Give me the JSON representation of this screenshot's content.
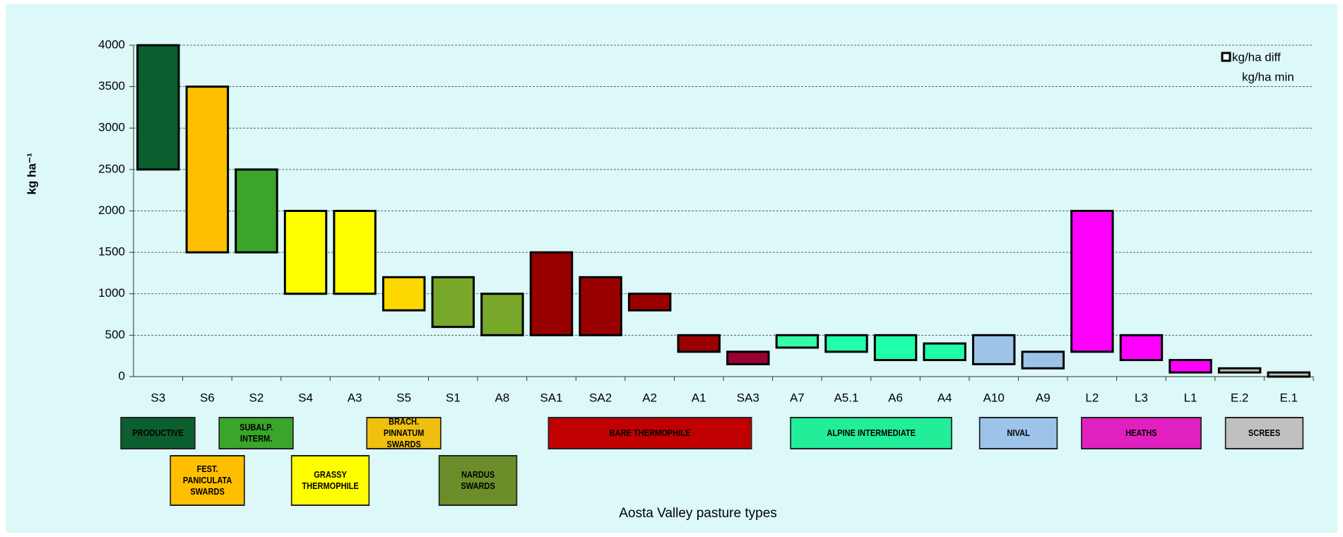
{
  "chart_data": {
    "type": "floating-bar",
    "y_label": "kg ha⁻¹",
    "x_label": "Aosta Valley pasture types",
    "categories": [
      "S3",
      "S6",
      "S2",
      "S4",
      "A3",
      "S5",
      "S1",
      "A8",
      "SA1",
      "SA2",
      "A2",
      "A1",
      "SA3",
      "A7",
      "A5.1",
      "A6",
      "A4",
      "A10",
      "A9",
      "L2",
      "L3",
      "L1",
      "E.2",
      "E.1"
    ],
    "series": [
      {
        "name": "kg/ha min",
        "color": "none",
        "values": [
          2500,
          1500,
          1500,
          1000,
          1000,
          800,
          600,
          500,
          500,
          500,
          800,
          300,
          150,
          350,
          300,
          200,
          200,
          150,
          100,
          300,
          200,
          50,
          50,
          0
        ]
      },
      {
        "name": "kg/ha diff",
        "colors": [
          "#0b5e2e",
          "#ffbf00",
          "#3aa52a",
          "#ffff00",
          "#ffff00",
          "#ffd700",
          "#77a82a",
          "#77a82a",
          "#990000",
          "#990000",
          "#990000",
          "#990000",
          "#990033",
          "#33ffaa",
          "#22ffaa",
          "#22ffaa",
          "#22ffaa",
          "#9ec3e8",
          "#9ec3e8",
          "#ff00ff",
          "#ff00ff",
          "#ff00ff",
          "#c0c0c0",
          "#c0c0c0"
        ],
        "values": [
          1500,
          2000,
          1000,
          1000,
          1000,
          400,
          600,
          500,
          1000,
          700,
          200,
          200,
          150,
          150,
          200,
          300,
          200,
          350,
          200,
          1700,
          300,
          150,
          50,
          50
        ]
      }
    ],
    "ylim": [
      0,
      4000
    ],
    "yticks": [
      0,
      500,
      1000,
      1500,
      2000,
      2500,
      3000,
      3500,
      4000
    ],
    "grid": true,
    "legend": "top-right",
    "groups": [
      {
        "label": "PRODUCTIVE",
        "color": "#0b5e2e",
        "members": [
          "S3"
        ]
      },
      {
        "label": "FEST.\nPANICULATA\nSWARDS",
        "color": "#ffbf00",
        "members": [
          "S6"
        ]
      },
      {
        "label": "SUBALP.\nINTERM.",
        "color": "#3aa52a",
        "members": [
          "S2"
        ]
      },
      {
        "label": "GRASSY\nTHERMOPHILE",
        "color": "#ffff00",
        "members": [
          "S4",
          "A3"
        ]
      },
      {
        "label": "BRACH.\nPINNATUM\nSWARDS",
        "color": "#f0c010",
        "members": [
          "S5"
        ]
      },
      {
        "label": "NARDUS\nSWARDS",
        "color": "#6b8e2a",
        "members": [
          "S1",
          "A8"
        ]
      },
      {
        "label": "BARE THERMOPHILE",
        "color": "#c00000",
        "members": [
          "SA1",
          "SA2",
          "A2",
          "A1",
          "SA3"
        ]
      },
      {
        "label": "ALPINE INTERMEDIATE",
        "color": "#22ee99",
        "members": [
          "A7",
          "A5.1",
          "A6",
          "A4"
        ]
      },
      {
        "label": "NIVAL",
        "color": "#9ec3e8",
        "members": [
          "A10",
          "A9"
        ]
      },
      {
        "label": "HEATHS",
        "color": "#e020c0",
        "members": [
          "L2",
          "L3",
          "L1"
        ]
      },
      {
        "label": "SCREES",
        "color": "#c0c0c0",
        "members": [
          "E.2",
          "E.1"
        ]
      }
    ]
  }
}
